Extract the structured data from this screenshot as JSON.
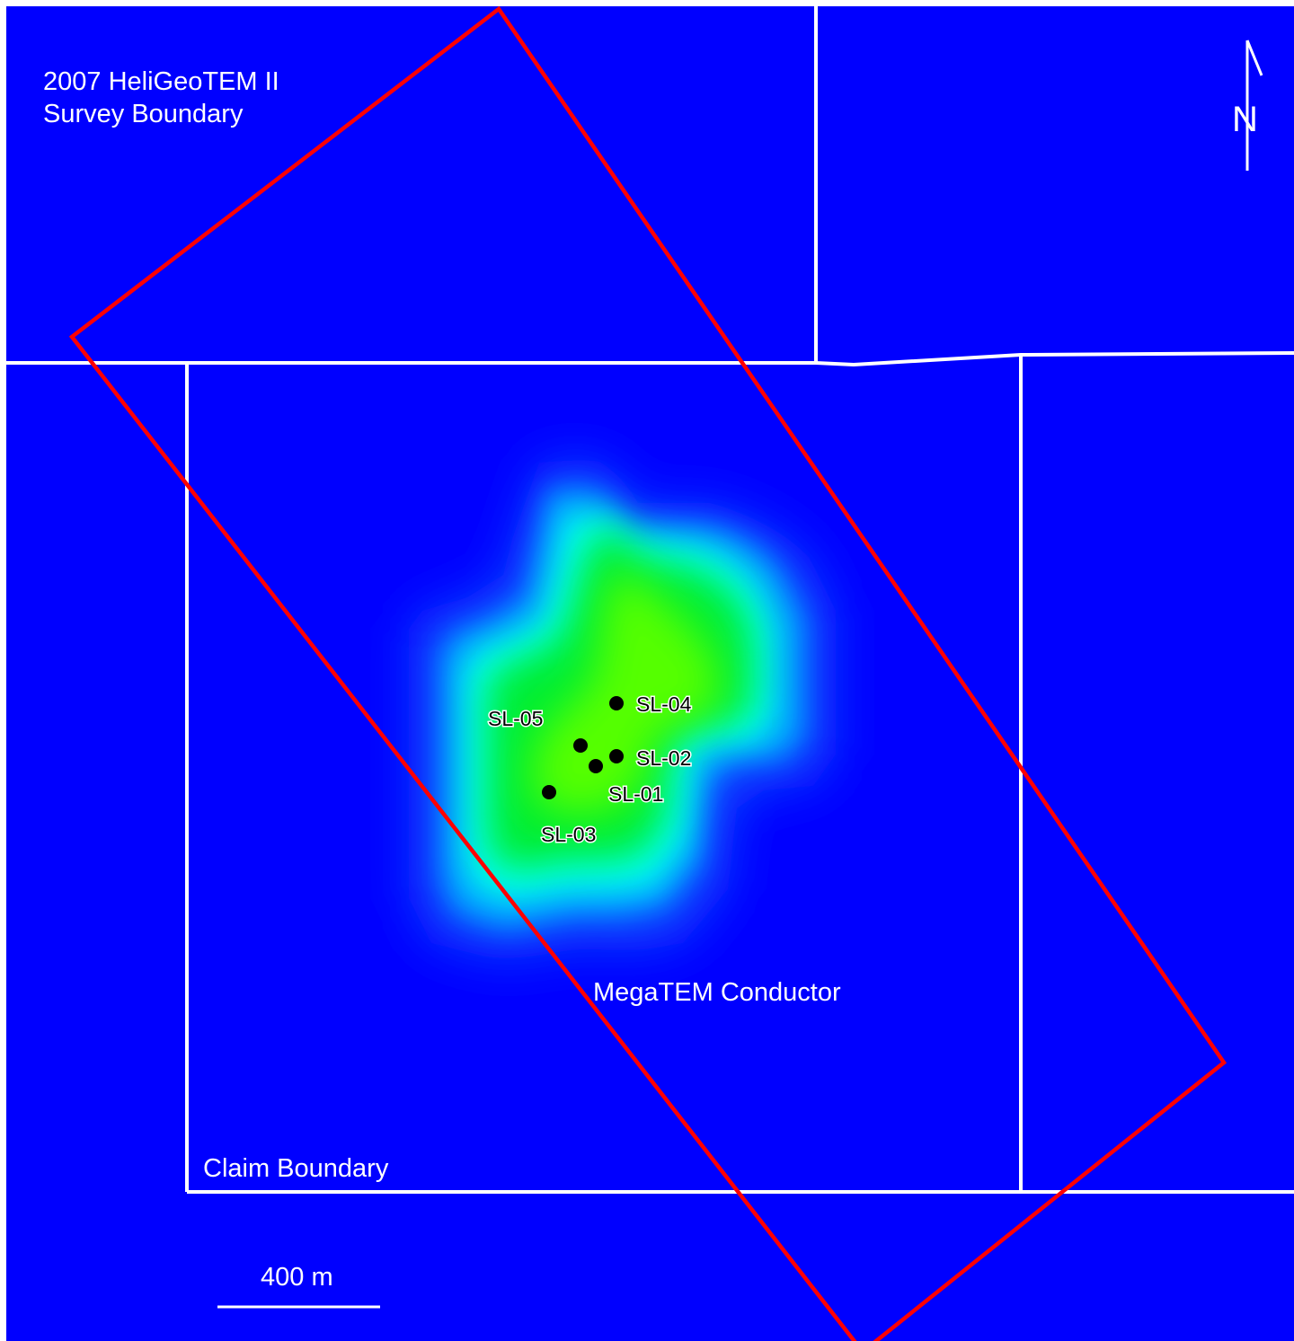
{
  "map": {
    "background_color": "#0000FF",
    "boundary_line_color": "#FFFFFF",
    "survey_boundary_color": "#FF0000",
    "conductor_colors": [
      "#0A3CFF",
      "#00A8FF",
      "#00FFFF",
      "#00EE33",
      "#55FF00"
    ]
  },
  "labels": {
    "survey_boundary_line1": "2007 HeliGeoTEM II",
    "survey_boundary_line2": "Survey Boundary",
    "claim_boundary": "Claim Boundary",
    "conductor": "MegaTEM Conductor",
    "north": "N",
    "scale": "400 m"
  },
  "drill_holes": [
    {
      "id": "SL-01",
      "label": "SL-01"
    },
    {
      "id": "SL-02",
      "label": "SL-02"
    },
    {
      "id": "SL-03",
      "label": "SL-03"
    },
    {
      "id": "SL-04",
      "label": "SL-04"
    },
    {
      "id": "SL-05",
      "label": "SL-05"
    }
  ],
  "icons": {
    "north_arrow": "north-arrow-icon",
    "scale_bar": "scale-bar-icon",
    "drill_hole": "drill-hole-marker-icon"
  }
}
